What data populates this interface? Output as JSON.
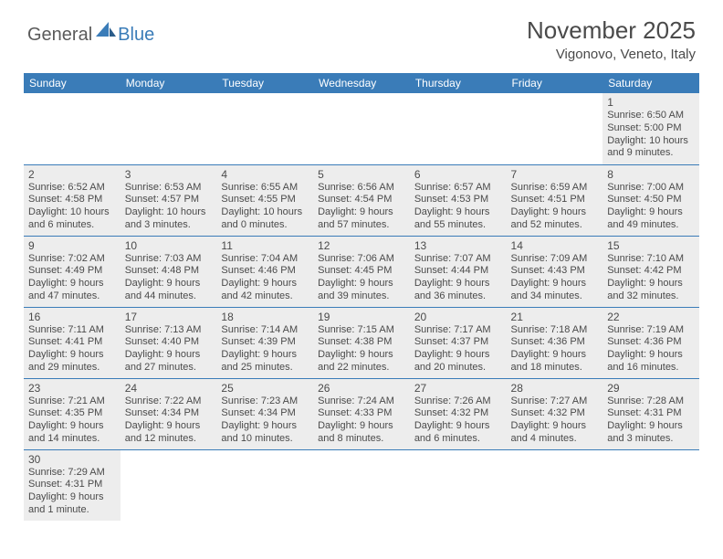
{
  "brand": {
    "general": "General",
    "blue": "Blue"
  },
  "title": "November 2025",
  "location": "Vigonovo, Veneto, Italy",
  "colors": {
    "accent": "#3a7cb8",
    "shaded": "#ededed",
    "text": "#4a4a4a",
    "bg": "#ffffff"
  },
  "dayHeaders": [
    "Sunday",
    "Monday",
    "Tuesday",
    "Wednesday",
    "Thursday",
    "Friday",
    "Saturday"
  ],
  "weeks": [
    [
      null,
      null,
      null,
      null,
      null,
      null,
      {
        "n": "1",
        "r": "Sunrise: 6:50 AM",
        "s": "Sunset: 5:00 PM",
        "d1": "Daylight: 10 hours",
        "d2": "and 9 minutes."
      }
    ],
    [
      {
        "n": "2",
        "r": "Sunrise: 6:52 AM",
        "s": "Sunset: 4:58 PM",
        "d1": "Daylight: 10 hours",
        "d2": "and 6 minutes."
      },
      {
        "n": "3",
        "r": "Sunrise: 6:53 AM",
        "s": "Sunset: 4:57 PM",
        "d1": "Daylight: 10 hours",
        "d2": "and 3 minutes."
      },
      {
        "n": "4",
        "r": "Sunrise: 6:55 AM",
        "s": "Sunset: 4:55 PM",
        "d1": "Daylight: 10 hours",
        "d2": "and 0 minutes."
      },
      {
        "n": "5",
        "r": "Sunrise: 6:56 AM",
        "s": "Sunset: 4:54 PM",
        "d1": "Daylight: 9 hours",
        "d2": "and 57 minutes."
      },
      {
        "n": "6",
        "r": "Sunrise: 6:57 AM",
        "s": "Sunset: 4:53 PM",
        "d1": "Daylight: 9 hours",
        "d2": "and 55 minutes."
      },
      {
        "n": "7",
        "r": "Sunrise: 6:59 AM",
        "s": "Sunset: 4:51 PM",
        "d1": "Daylight: 9 hours",
        "d2": "and 52 minutes."
      },
      {
        "n": "8",
        "r": "Sunrise: 7:00 AM",
        "s": "Sunset: 4:50 PM",
        "d1": "Daylight: 9 hours",
        "d2": "and 49 minutes."
      }
    ],
    [
      {
        "n": "9",
        "r": "Sunrise: 7:02 AM",
        "s": "Sunset: 4:49 PM",
        "d1": "Daylight: 9 hours",
        "d2": "and 47 minutes."
      },
      {
        "n": "10",
        "r": "Sunrise: 7:03 AM",
        "s": "Sunset: 4:48 PM",
        "d1": "Daylight: 9 hours",
        "d2": "and 44 minutes."
      },
      {
        "n": "11",
        "r": "Sunrise: 7:04 AM",
        "s": "Sunset: 4:46 PM",
        "d1": "Daylight: 9 hours",
        "d2": "and 42 minutes."
      },
      {
        "n": "12",
        "r": "Sunrise: 7:06 AM",
        "s": "Sunset: 4:45 PM",
        "d1": "Daylight: 9 hours",
        "d2": "and 39 minutes."
      },
      {
        "n": "13",
        "r": "Sunrise: 7:07 AM",
        "s": "Sunset: 4:44 PM",
        "d1": "Daylight: 9 hours",
        "d2": "and 36 minutes."
      },
      {
        "n": "14",
        "r": "Sunrise: 7:09 AM",
        "s": "Sunset: 4:43 PM",
        "d1": "Daylight: 9 hours",
        "d2": "and 34 minutes."
      },
      {
        "n": "15",
        "r": "Sunrise: 7:10 AM",
        "s": "Sunset: 4:42 PM",
        "d1": "Daylight: 9 hours",
        "d2": "and 32 minutes."
      }
    ],
    [
      {
        "n": "16",
        "r": "Sunrise: 7:11 AM",
        "s": "Sunset: 4:41 PM",
        "d1": "Daylight: 9 hours",
        "d2": "and 29 minutes."
      },
      {
        "n": "17",
        "r": "Sunrise: 7:13 AM",
        "s": "Sunset: 4:40 PM",
        "d1": "Daylight: 9 hours",
        "d2": "and 27 minutes."
      },
      {
        "n": "18",
        "r": "Sunrise: 7:14 AM",
        "s": "Sunset: 4:39 PM",
        "d1": "Daylight: 9 hours",
        "d2": "and 25 minutes."
      },
      {
        "n": "19",
        "r": "Sunrise: 7:15 AM",
        "s": "Sunset: 4:38 PM",
        "d1": "Daylight: 9 hours",
        "d2": "and 22 minutes."
      },
      {
        "n": "20",
        "r": "Sunrise: 7:17 AM",
        "s": "Sunset: 4:37 PM",
        "d1": "Daylight: 9 hours",
        "d2": "and 20 minutes."
      },
      {
        "n": "21",
        "r": "Sunrise: 7:18 AM",
        "s": "Sunset: 4:36 PM",
        "d1": "Daylight: 9 hours",
        "d2": "and 18 minutes."
      },
      {
        "n": "22",
        "r": "Sunrise: 7:19 AM",
        "s": "Sunset: 4:36 PM",
        "d1": "Daylight: 9 hours",
        "d2": "and 16 minutes."
      }
    ],
    [
      {
        "n": "23",
        "r": "Sunrise: 7:21 AM",
        "s": "Sunset: 4:35 PM",
        "d1": "Daylight: 9 hours",
        "d2": "and 14 minutes."
      },
      {
        "n": "24",
        "r": "Sunrise: 7:22 AM",
        "s": "Sunset: 4:34 PM",
        "d1": "Daylight: 9 hours",
        "d2": "and 12 minutes."
      },
      {
        "n": "25",
        "r": "Sunrise: 7:23 AM",
        "s": "Sunset: 4:34 PM",
        "d1": "Daylight: 9 hours",
        "d2": "and 10 minutes."
      },
      {
        "n": "26",
        "r": "Sunrise: 7:24 AM",
        "s": "Sunset: 4:33 PM",
        "d1": "Daylight: 9 hours",
        "d2": "and 8 minutes."
      },
      {
        "n": "27",
        "r": "Sunrise: 7:26 AM",
        "s": "Sunset: 4:32 PM",
        "d1": "Daylight: 9 hours",
        "d2": "and 6 minutes."
      },
      {
        "n": "28",
        "r": "Sunrise: 7:27 AM",
        "s": "Sunset: 4:32 PM",
        "d1": "Daylight: 9 hours",
        "d2": "and 4 minutes."
      },
      {
        "n": "29",
        "r": "Sunrise: 7:28 AM",
        "s": "Sunset: 4:31 PM",
        "d1": "Daylight: 9 hours",
        "d2": "and 3 minutes."
      }
    ],
    [
      {
        "n": "30",
        "r": "Sunrise: 7:29 AM",
        "s": "Sunset: 4:31 PM",
        "d1": "Daylight: 9 hours",
        "d2": "and 1 minute."
      },
      null,
      null,
      null,
      null,
      null,
      null
    ]
  ]
}
